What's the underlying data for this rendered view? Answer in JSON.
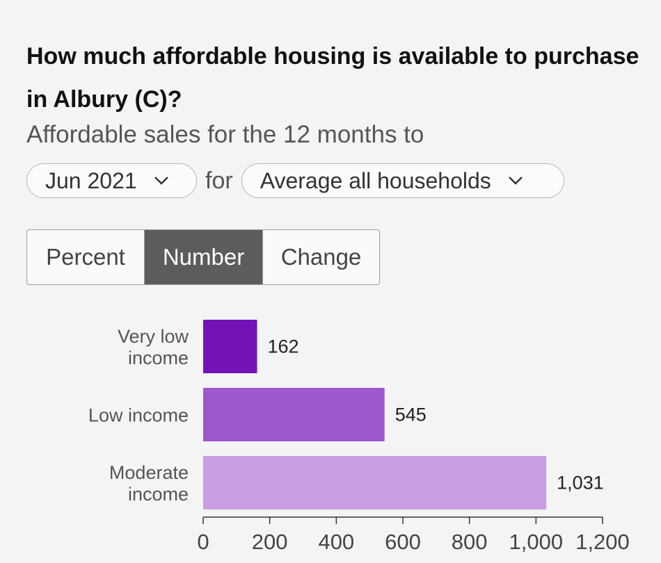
{
  "header": {
    "title": "How much affordable housing is available to purchase in Albury (C)?",
    "subtitle": "Affordable sales for the 12 months to"
  },
  "controls": {
    "period_value": "Jun 2021",
    "for_label": "for",
    "household_value": "Average all households"
  },
  "toggle": {
    "options": [
      "Percent",
      "Number",
      "Change"
    ],
    "active": "Number"
  },
  "chart_data": {
    "type": "bar",
    "orientation": "horizontal",
    "categories": [
      [
        "Very low",
        "income"
      ],
      [
        "Low income"
      ],
      [
        "Moderate",
        "income"
      ]
    ],
    "values": [
      162,
      545,
      1031
    ],
    "value_labels": [
      "162",
      "545",
      "1,031"
    ],
    "colors": [
      "#7312b7",
      "#9c58cc",
      "#c89de3"
    ],
    "xlim": [
      0,
      1200
    ],
    "xticks": [
      0,
      200,
      400,
      600,
      800,
      1000,
      1200
    ],
    "xtick_labels": [
      "0",
      "200",
      "400",
      "600",
      "800",
      "1,000",
      "1,200"
    ],
    "grid": false
  }
}
